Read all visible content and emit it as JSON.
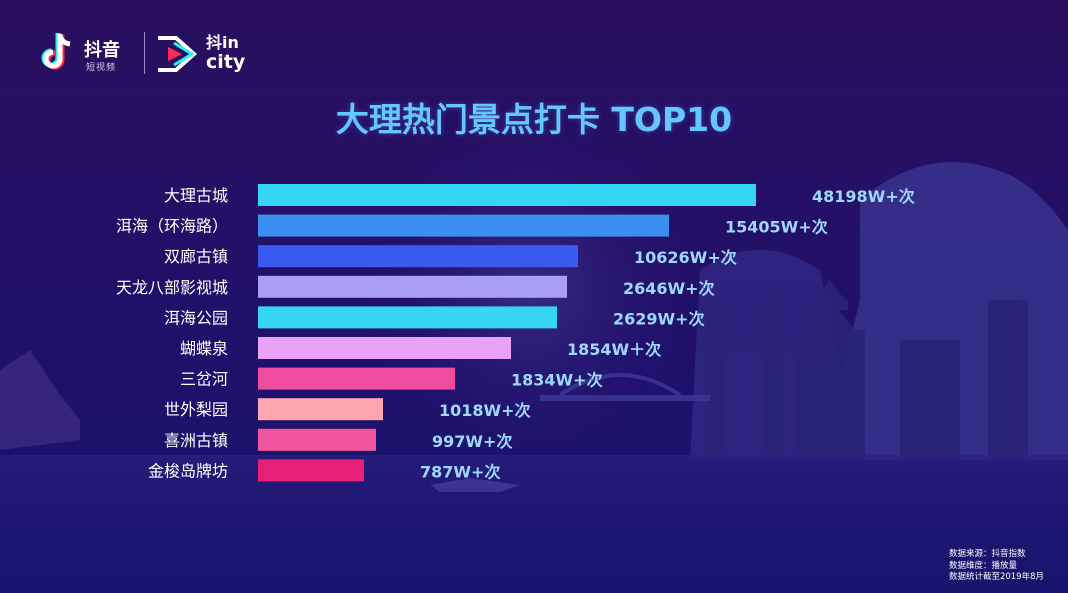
{
  "brand": {
    "app_name": "抖音",
    "app_sub": "短视频",
    "partner_line1": "抖in",
    "partner_line2": "city"
  },
  "colors": {
    "background": "#22106a",
    "title": "#66c6ff",
    "value_label": "#9ed8ff"
  },
  "chart_data": {
    "type": "bar",
    "orientation": "horizontal",
    "title": "大理热门景点打卡 TOP10",
    "categories": [
      "大理古城",
      "洱海（环海路）",
      "双廊古镇",
      "天龙八部影视城",
      "洱海公园",
      "蝴蝶泉",
      "三岔河",
      "世外梨园",
      "喜洲古镇",
      "金梭岛牌坊"
    ],
    "values": [
      48198,
      15405,
      10626,
      2646,
      2629,
      1854,
      1834,
      1018,
      997,
      787
    ],
    "value_labels": [
      "48198W+次",
      "15405W+次",
      "10626W+次",
      "2646W+次",
      "2629W+次",
      "1854W＋次",
      "1834W+次",
      "1018W+次",
      "997W+次",
      "787W+次"
    ],
    "bar_colors": [
      "#36d5f5",
      "#3c8ef0",
      "#3a5af0",
      "#a89ef5",
      "#36d5f5",
      "#e9a2f5",
      "#ee4c9e",
      "#ffa6b0",
      "#f2559e",
      "#e8207a"
    ],
    "bar_fractions": [
      1.0,
      0.826,
      0.642,
      0.621,
      0.6,
      0.508,
      0.395,
      0.251,
      0.236,
      0.212
    ],
    "unit": "次"
  },
  "footnote": {
    "line1": "数据来源：抖音指数",
    "line2": "数据维度：播放量",
    "line3": "数据统计截至2019年8月"
  }
}
